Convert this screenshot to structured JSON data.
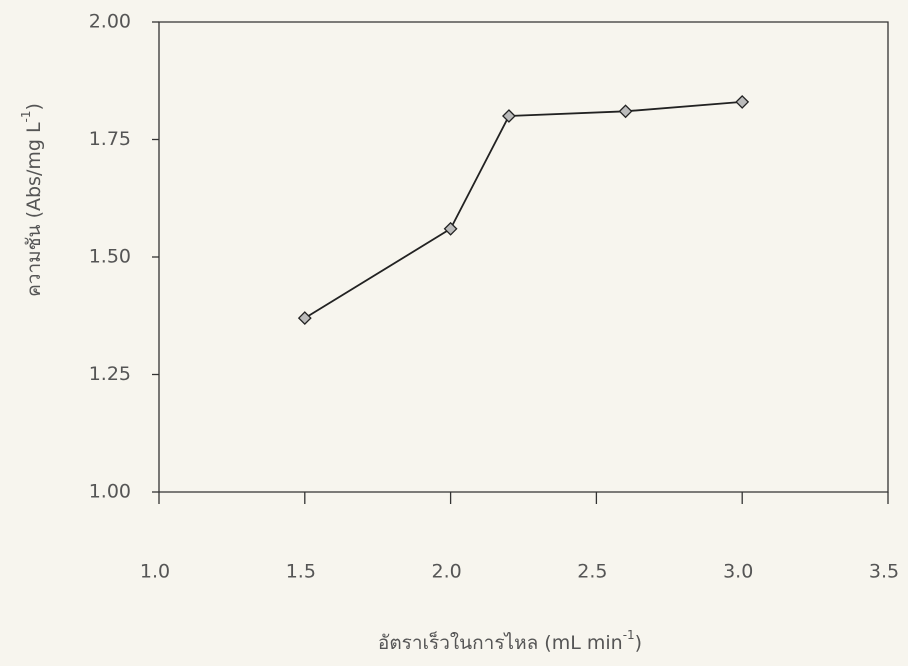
{
  "chart_data": {
    "type": "line",
    "x_label": {
      "text": "อัตราเร็วในการไหล (mL min",
      "sup": "-1",
      "end": ")"
    },
    "y_label": {
      "text": "ความชัน (Abs/mg L",
      "sup": "-1",
      "end": ")"
    },
    "x": [
      1.5,
      2.0,
      2.2,
      2.6,
      3.0
    ],
    "series": [
      {
        "color": "#222222",
        "values": [
          1.37,
          1.56,
          1.8,
          1.81,
          1.83
        ]
      }
    ],
    "xlim": [
      1.0,
      3.5
    ],
    "xticks": [
      {
        "value": 1.0,
        "label": "1.0"
      },
      {
        "value": 1.5,
        "label": "1.5"
      },
      {
        "value": 2.0,
        "label": "2.0"
      },
      {
        "value": 2.5,
        "label": "2.5"
      },
      {
        "value": 3.0,
        "label": "3.0"
      },
      {
        "value": 3.5,
        "label": "3.5"
      }
    ],
    "ylim": [
      1.0,
      2.0
    ],
    "yticks": [
      {
        "value": 1.0,
        "label": "1.00"
      },
      {
        "value": 1.25,
        "label": "1.25"
      },
      {
        "value": 1.5,
        "label": "1.50"
      },
      {
        "value": 1.75,
        "label": "1.75"
      },
      {
        "value": 2.0,
        "label": "2.00"
      }
    ],
    "grid": false
  }
}
